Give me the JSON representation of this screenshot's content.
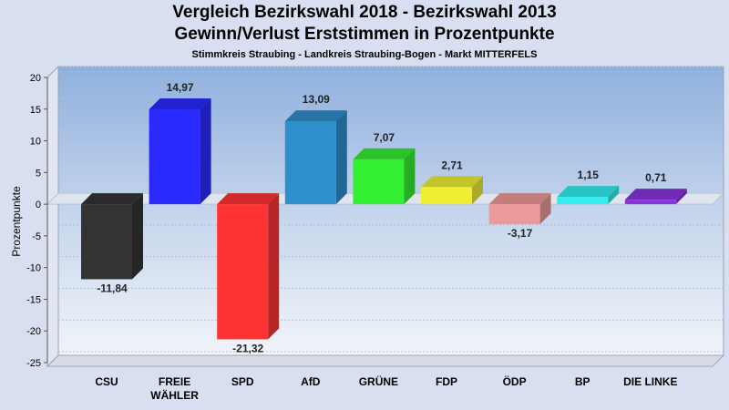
{
  "chart_data": {
    "type": "bar",
    "title": "Vergleich Bezirkswahl 2018 - Bezirkswahl 2013",
    "subtitle": "Gewinn/Verlust Erststimmen in Prozentpunkte",
    "subsubtitle": "Stimmkreis Straubing - Landkreis Straubing-Bogen - Markt MITTERFELS",
    "ylabel": "Prozentpunkte",
    "ylim": [
      -25,
      20
    ],
    "yticks": [
      20,
      15,
      10,
      5,
      0,
      -5,
      -10,
      -15,
      -20,
      -25
    ],
    "grid": true,
    "categories": [
      "CSU",
      "FREIE WÄHLER",
      "SPD",
      "AfD",
      "GRÜNE",
      "FDP",
      "ÖDP",
      "BP",
      "DIE LINKE"
    ],
    "category_lines": [
      [
        "CSU"
      ],
      [
        "FREIE",
        "WÄHLER"
      ],
      [
        "SPD"
      ],
      [
        "AfD"
      ],
      [
        "GRÜNE"
      ],
      [
        "FDP"
      ],
      [
        "ÖDP"
      ],
      [
        "BP"
      ],
      [
        "DIE LINKE"
      ]
    ],
    "values": [
      -11.84,
      14.97,
      -21.32,
      13.09,
      7.07,
      2.71,
      -3.17,
      1.15,
      0.71
    ],
    "labels": [
      "-11,84",
      "14,97",
      "-21,32",
      "13,09",
      "7,07",
      "2,71",
      "-3,17",
      "1,15",
      "0,71"
    ],
    "colors": [
      "#333333",
      "#2a2aff",
      "#ff3333",
      "#2f8fcc",
      "#33ee33",
      "#eeee33",
      "#ee9999",
      "#33eeee",
      "#8833dd"
    ]
  }
}
